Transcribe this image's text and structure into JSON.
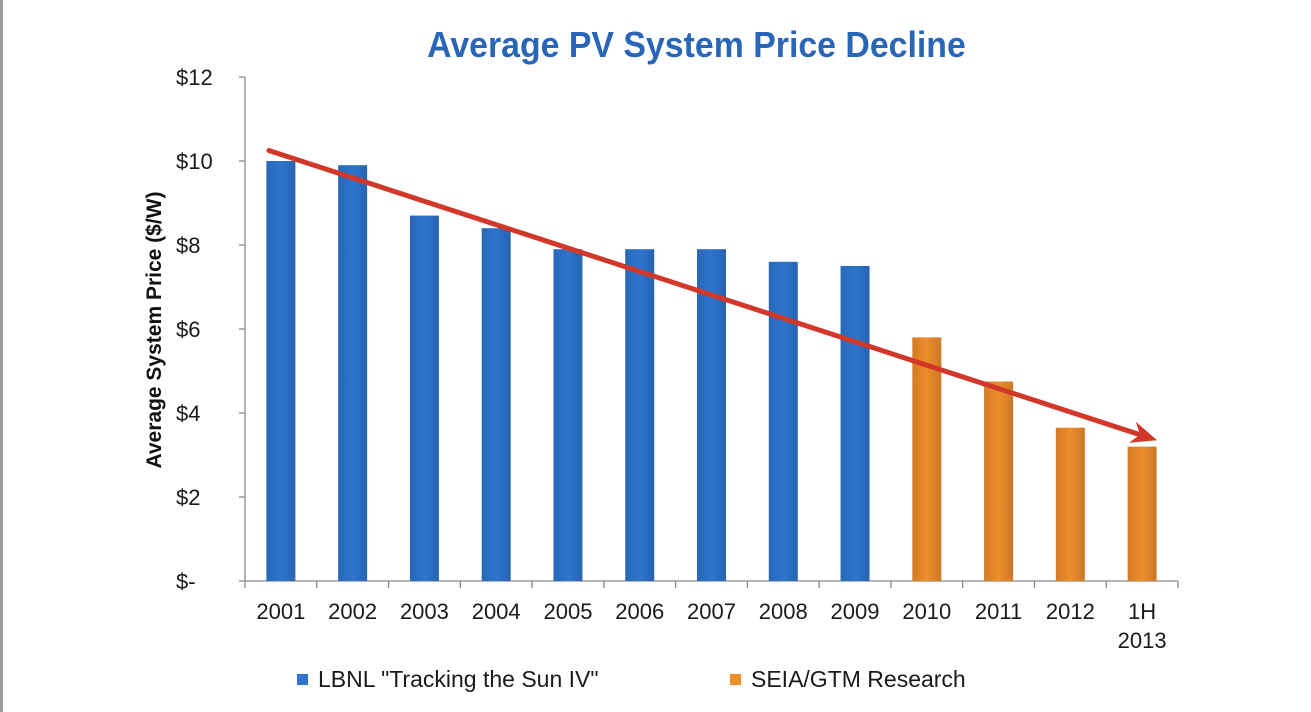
{
  "chart_data": {
    "type": "bar",
    "title": "Average PV System Price Decline",
    "ylabel": "Average System Price ($/W)",
    "xlabel": "",
    "ylim": [
      0,
      12
    ],
    "yticks": [
      0,
      2,
      4,
      6,
      8,
      10,
      12
    ],
    "ytick_labels": [
      "$-",
      "$2",
      "$4",
      "$6",
      "$8",
      "$10",
      "$12"
    ],
    "grid": false,
    "legend_position": "bottom",
    "categories": [
      "2001",
      "2002",
      "2003",
      "2004",
      "2005",
      "2006",
      "2007",
      "2008",
      "2009",
      "2010",
      "2011",
      "2012",
      "1H 2013"
    ],
    "series": [
      {
        "name": "LBNL \"Tracking the Sun IV\"",
        "color": "#2e75cf",
        "values": [
          10.0,
          9.9,
          8.7,
          8.4,
          7.9,
          7.9,
          7.9,
          7.6,
          7.5,
          null,
          null,
          null,
          null
        ]
      },
      {
        "name": "SEIA/GTM Research",
        "color": "#ef8d2c",
        "values": [
          null,
          null,
          null,
          null,
          null,
          null,
          null,
          null,
          null,
          5.8,
          4.75,
          3.65,
          3.2
        ]
      }
    ],
    "annotations": [
      {
        "type": "trend-arrow",
        "color": "#d1382a",
        "from": {
          "category": "2001",
          "y": 10.25
        },
        "to": {
          "category": "1H 2013",
          "y": 3.35
        }
      }
    ]
  }
}
